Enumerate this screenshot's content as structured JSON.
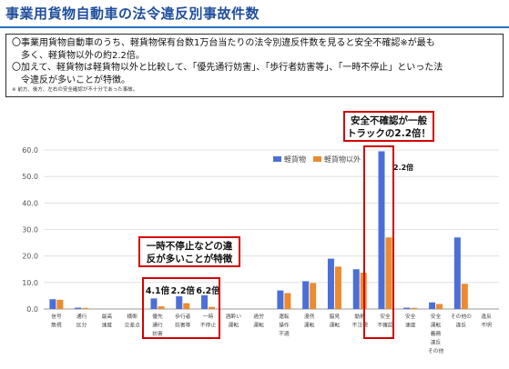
{
  "title": "事業用貨物自動車の法令違反別事故件数",
  "summary": {
    "lines": [
      "〇事業用貨物自動車のうち、軽貨物保有台数1万台当たりの法令別違反件数を見ると安全不確認※が最も",
      "　多く、軽貨物以外の約2.2倍。",
      "〇加えて、軽貨物は軽貨物以外と比較して、「優先通行妨害」、「歩行者妨害等」、「一時不停止」といった法",
      "　令違反が多いことが特徴。"
    ],
    "note": "※ 前方、後方、左右の安全確認が不十分であった事故。"
  },
  "callouts": {
    "safety": [
      "安全不確認が一般",
      "トラックの2.2倍！"
    ],
    "stop": [
      "一時不停止などの違",
      "反が多いことが特徴"
    ]
  },
  "colors": {
    "light": "#4c6fd6",
    "other": "#ec8a2f",
    "accent": "#d40000"
  },
  "chart_data": {
    "type": "bar",
    "categories": [
      [
        "信号",
        "無視"
      ],
      [
        "通行",
        "区分"
      ],
      [
        "最高",
        "速度"
      ],
      [
        "横断",
        "交差点"
      ],
      [
        "優先",
        "通行",
        "妨害"
      ],
      [
        "歩行者",
        "妨害等"
      ],
      [
        "一時",
        "不停止"
      ],
      [
        "酒酔い",
        "運転"
      ],
      [
        "過労",
        "運転"
      ],
      [
        "運転",
        "操作",
        "不適"
      ],
      [
        "漫然",
        "運転"
      ],
      [
        "脇見",
        "運転"
      ],
      [
        "動静",
        "不注視"
      ],
      [
        "安全",
        "不確認"
      ],
      [
        "安全",
        "速度"
      ],
      [
        "安全",
        "運転",
        "義務",
        "違反",
        "その他"
      ],
      [
        "その他の",
        "違反"
      ],
      [
        "違反",
        "不明"
      ]
    ],
    "series": [
      {
        "name": "軽貨物",
        "values": [
          3.7,
          0.5,
          0,
          0,
          4.0,
          4.8,
          5.2,
          0,
          0,
          7.0,
          10.5,
          19.0,
          15.0,
          59.5,
          0.5,
          2.5,
          27.0,
          0
        ]
      },
      {
        "name": "軽貨物以外",
        "values": [
          3.5,
          0.4,
          0,
          0,
          1.0,
          2.2,
          0.8,
          0,
          0,
          6.0,
          9.8,
          16.0,
          13.7,
          27.0,
          0.4,
          1.9,
          9.5,
          0
        ]
      }
    ],
    "ylim": [
      0,
      60
    ],
    "yticks": [
      "0.0",
      "10.0",
      "20.0",
      "30.0",
      "40.0",
      "50.0",
      "60.0"
    ],
    "legend_position": "top-right",
    "annotations": [
      {
        "category_index": 4,
        "text": "4.1倍"
      },
      {
        "category_index": 5,
        "text": "2.2倍"
      },
      {
        "category_index": 6,
        "text": "6.2倍"
      },
      {
        "category_index": 13,
        "text": "2.2倍"
      }
    ]
  }
}
